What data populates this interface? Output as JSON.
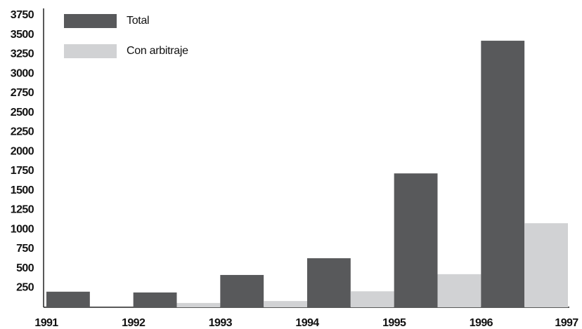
{
  "chart_data": {
    "type": "bar",
    "categories": [
      "1991",
      "1992",
      "1993",
      "1994",
      "1995",
      "1996",
      "1997"
    ],
    "series": [
      {
        "name": "Total",
        "color": "#58595b",
        "values": [
          200,
          190,
          415,
          630,
          1720,
          3425,
          null
        ]
      },
      {
        "name": "Con arbitraje",
        "color": "#d1d2d4",
        "values": [
          0,
          55,
          80,
          205,
          425,
          1080,
          null
        ]
      }
    ],
    "ylim": [
      0,
      3750
    ],
    "yticks": [
      250,
      500,
      750,
      1000,
      1250,
      1500,
      1750,
      2000,
      2250,
      2500,
      2750,
      3000,
      3250,
      3500,
      3750
    ],
    "grid": false,
    "legend": "top-left"
  }
}
